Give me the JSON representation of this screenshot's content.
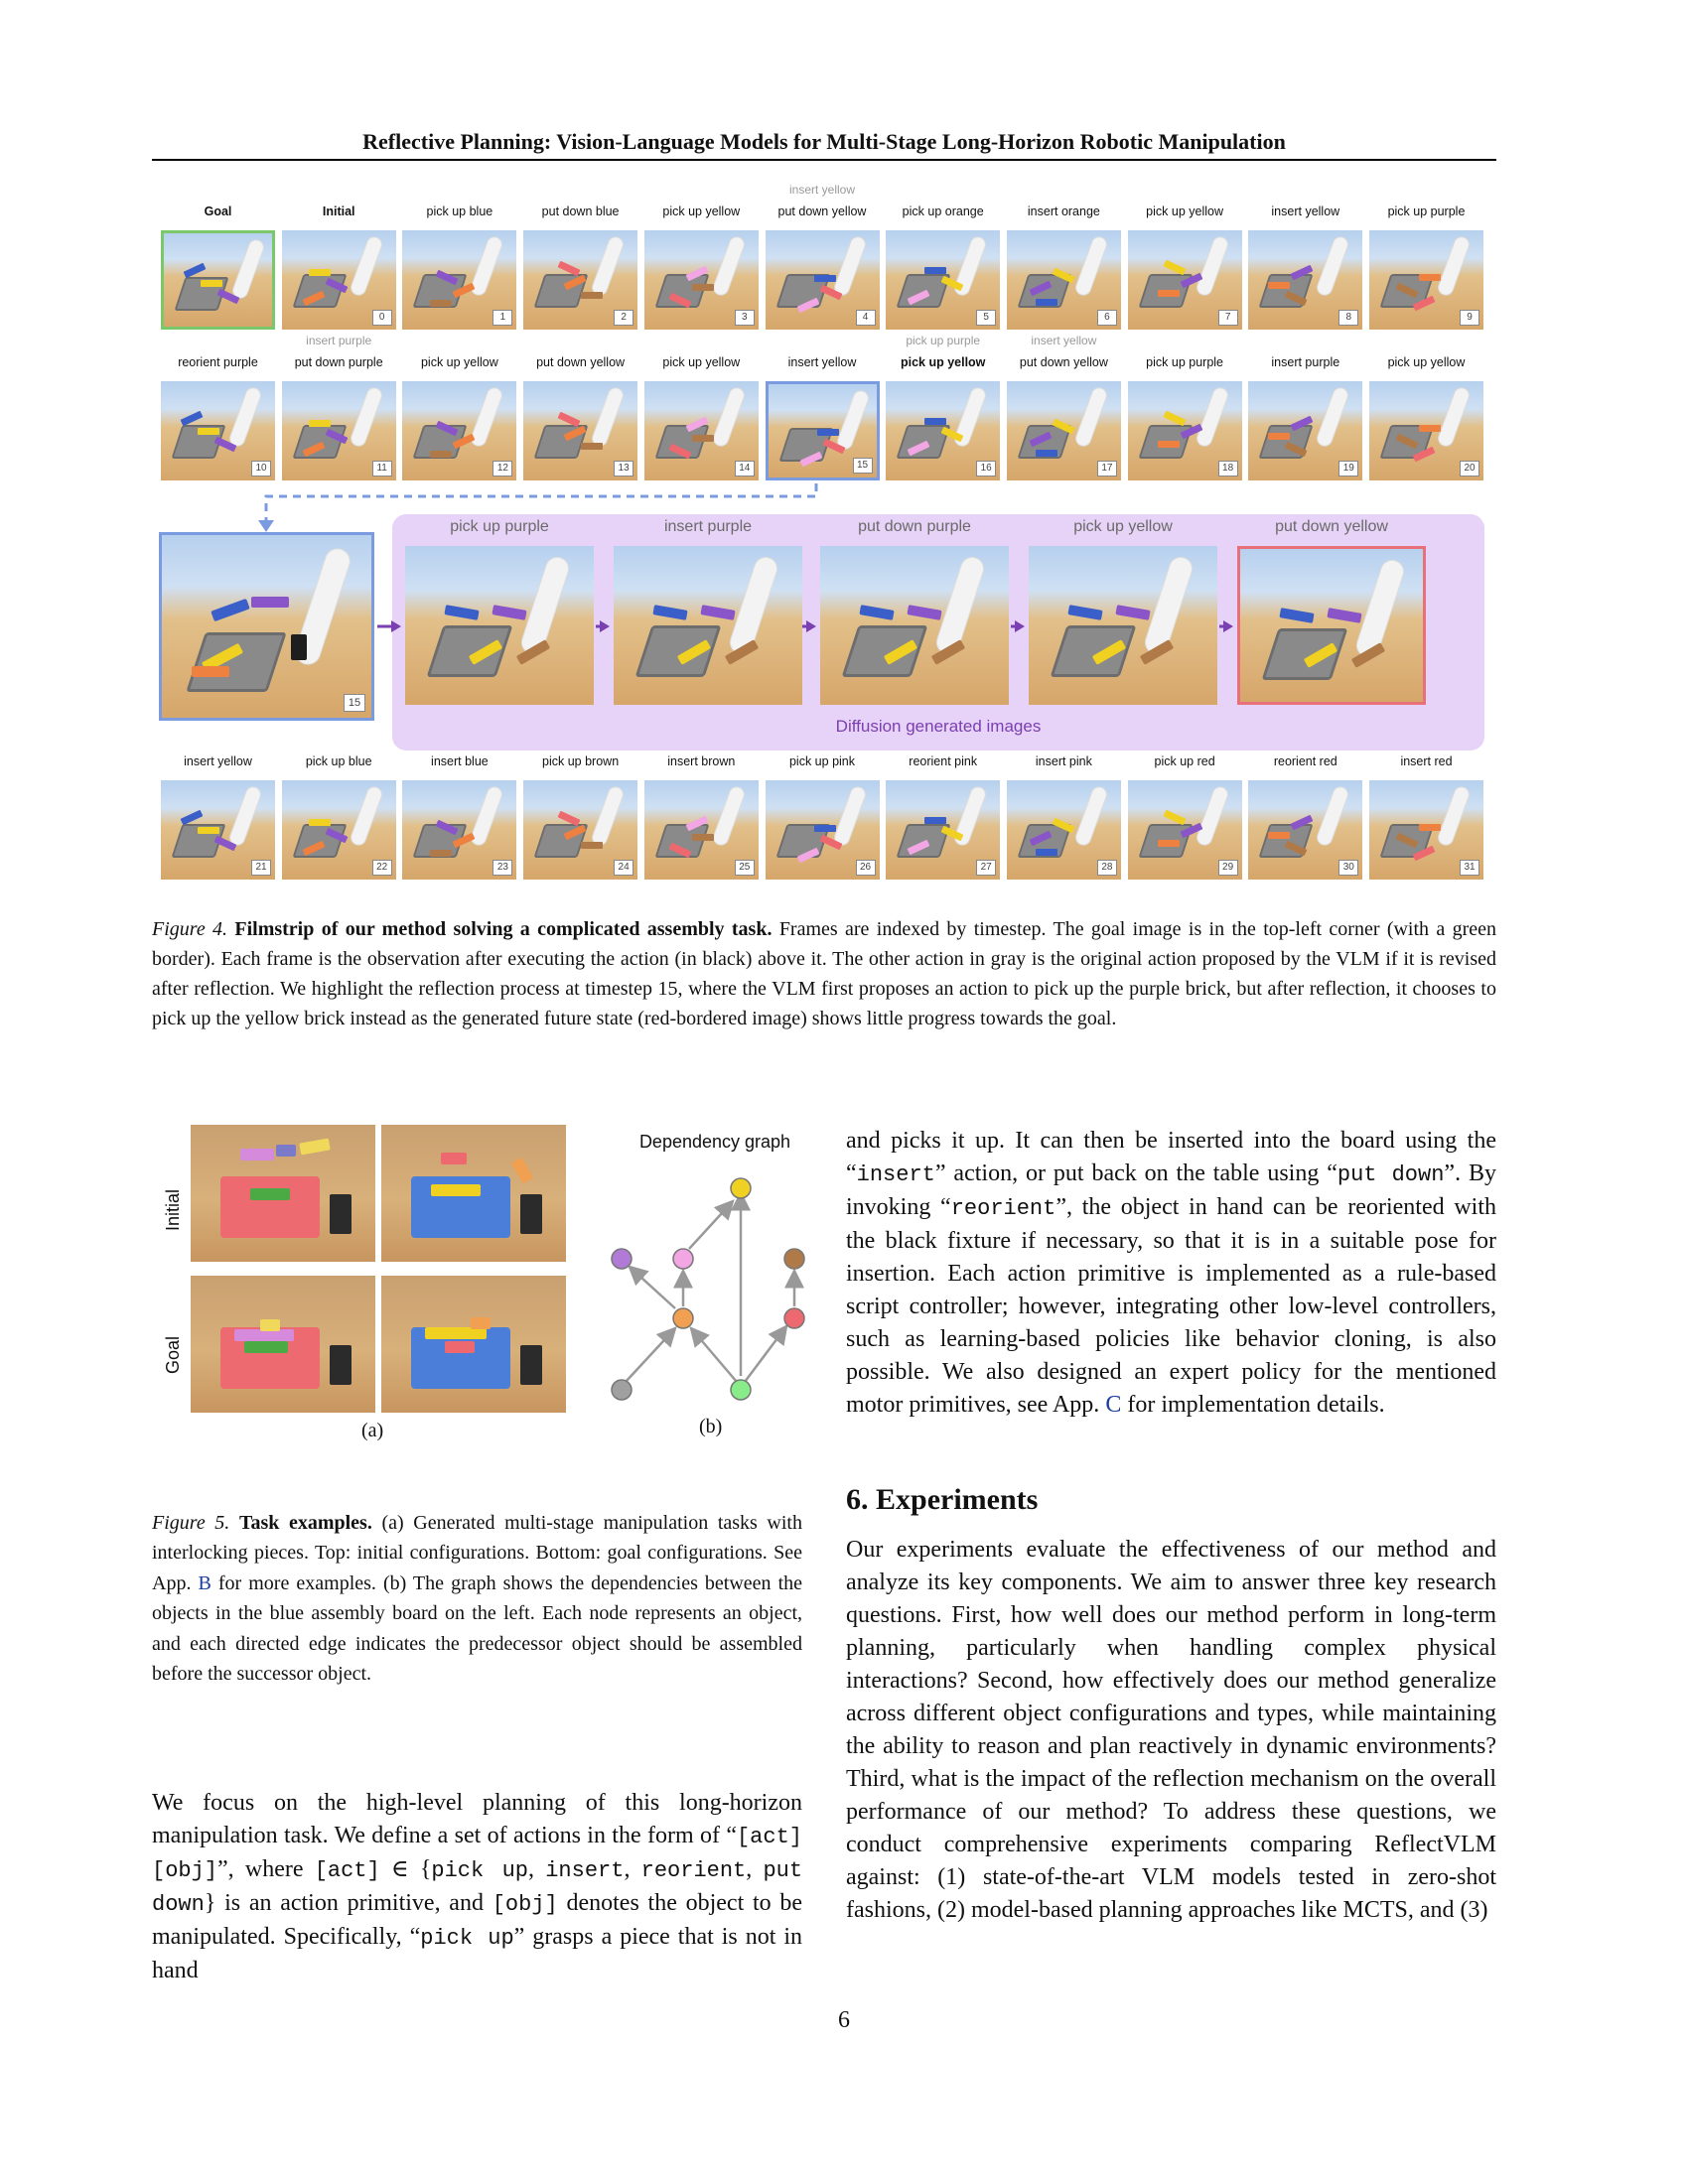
{
  "header": {
    "title": "Reflective Planning: Vision-Language Models for Multi-Stage Long-Horizon Robotic Manipulation"
  },
  "filmstrip": {
    "row1": [
      {
        "label": "Goal",
        "index": "",
        "gray_label": "",
        "bold": true
      },
      {
        "label": "Initial",
        "index": "0",
        "gray_label": "",
        "bold": true
      },
      {
        "label": "pick up blue",
        "index": "1",
        "gray_label": ""
      },
      {
        "label": "put down blue",
        "index": "2",
        "gray_label": ""
      },
      {
        "label": "pick up yellow",
        "index": "3",
        "gray_label": ""
      },
      {
        "label": "put down yellow",
        "index": "4",
        "gray_label": "insert yellow"
      },
      {
        "label": "pick up orange",
        "index": "5",
        "gray_label": ""
      },
      {
        "label": "insert orange",
        "index": "6",
        "gray_label": ""
      },
      {
        "label": "pick up yellow",
        "index": "7",
        "gray_label": ""
      },
      {
        "label": "insert yellow",
        "index": "8",
        "gray_label": ""
      },
      {
        "label": "pick up purple",
        "index": "9",
        "gray_label": ""
      }
    ],
    "row2": [
      {
        "label": "reorient purple",
        "index": "10",
        "gray_label": ""
      },
      {
        "label": "put down purple",
        "index": "11",
        "gray_label": "insert purple"
      },
      {
        "label": "pick up yellow",
        "index": "12",
        "gray_label": ""
      },
      {
        "label": "put down yellow",
        "index": "13",
        "gray_label": ""
      },
      {
        "label": "pick up yellow",
        "index": "14",
        "gray_label": ""
      },
      {
        "label": "insert yellow",
        "index": "15",
        "gray_label": ""
      },
      {
        "label": "pick up yellow",
        "index": "16",
        "gray_label": "pick up purple",
        "bold": true
      },
      {
        "label": "put down yellow",
        "index": "17",
        "gray_label": "insert yellow"
      },
      {
        "label": "pick up purple",
        "index": "18",
        "gray_label": ""
      },
      {
        "label": "insert purple",
        "index": "19",
        "gray_label": ""
      },
      {
        "label": "pick up yellow",
        "index": "20",
        "gray_label": ""
      }
    ],
    "reflection": {
      "start_index": "15",
      "steps": [
        "pick up purple",
        "insert purple",
        "put down purple",
        "pick up yellow",
        "put down yellow"
      ],
      "caption": "Diffusion generated images"
    },
    "row3": [
      {
        "label": "insert yellow",
        "index": "21"
      },
      {
        "label": "pick up blue",
        "index": "22"
      },
      {
        "label": "insert blue",
        "index": "23"
      },
      {
        "label": "pick up brown",
        "index": "24"
      },
      {
        "label": "insert brown",
        "index": "25"
      },
      {
        "label": "pick up pink",
        "index": "26"
      },
      {
        "label": "reorient pink",
        "index": "27"
      },
      {
        "label": "insert pink",
        "index": "28"
      },
      {
        "label": "pick up red",
        "index": "29"
      },
      {
        "label": "reorient red",
        "index": "30"
      },
      {
        "label": "insert red",
        "index": "31"
      }
    ]
  },
  "figure4": {
    "label": "Figure 4.",
    "title": "Filmstrip of our method solving a complicated assembly task.",
    "text": "Frames are indexed by timestep. The goal image is in the top-left corner (with a green border). Each frame is the observation after executing the action (in black) above it. The other action in gray is the original action proposed by the VLM if it is revised after reflection. We highlight the reflection process at timestep 15, where the VLM first proposes an action to pick up the purple brick, but after reflection, it chooses to pick up the yellow brick instead as the generated future state (red-bordered image) shows little progress towards the goal."
  },
  "figure5": {
    "row_labels": [
      "Initial",
      "Goal"
    ],
    "graph_title": "Dependency graph",
    "sub_a": "(a)",
    "sub_b": "(b)",
    "label": "Figure 5.",
    "title": "Task examples.",
    "text_1": "(a) Generated multi-stage manipulation tasks with interlocking pieces. Top: initial configurations. Bottom: goal configurations. See App.",
    "link_1": "B",
    "text_2": "for more examples. (b) The graph shows the dependencies between the objects in the blue assembly board on the left. Each node represents an object, and each directed edge indicates the predecessor object should be assembled before the successor object.",
    "colors": {
      "purple": "#b07ad6",
      "pink": "#f2a6e4",
      "yellow": "#f0d020",
      "orange": "#f0a050",
      "brown": "#b07a48",
      "red": "#ee6870",
      "gray": "#a0a0a0",
      "green": "#88ec88"
    }
  },
  "left_column": {
    "p1": "We focus on the high-level planning of this long-horizon manipulation task. We define a set of actions in the form of “",
    "m1": "[act] [obj]",
    "p2": "”, where",
    "m2": "[act]",
    "p3": "∈ {",
    "m3": "pick up",
    "m4": "insert",
    "m5": "reorient",
    "m6": "put down",
    "p4": "} is an action primitive, and",
    "m7": "[obj]",
    "p5": "denotes the object to be manipulated. Specifically, “",
    "m8": "pick up",
    "p6": "” grasps a piece that is not in hand"
  },
  "right_column": {
    "p1": "and picks it up. It can then be inserted into the board using the “",
    "m1": "insert",
    "p2": "” action, or put back on the table using “",
    "m2": "put down",
    "p3": "”. By invoking “",
    "m3": "reorient",
    "p4": "”, the object in hand can be reoriented with the black fixture if necessary, so that it is in a suitable pose for insertion. Each action primitive is implemented as a rule-based script controller; however, integrating other low-level controllers, such as learning-based policies like behavior cloning, is also possible. We also designed an expert policy for the mentioned motor primitives, see App.",
    "link": "C",
    "p5": "for implementation details.",
    "section": "6. Experiments",
    "body": "Our experiments evaluate the effectiveness of our method and analyze its key components. We aim to answer three key research questions. First, how well does our method perform in long-term planning, particularly when handling complex physical interactions? Second, how effectively does our method generalize across different object configurations and types, while maintaining the ability to reason and plan reactively in dynamic environments? Third, what is the impact of the reflection mechanism on the overall performance of our method? To address these questions, we conduct comprehensive experiments comparing ReflectVLM against: (1) state-of-the-art VLM models tested in zero-shot fashions, (2) model-based planning approaches like MCTS, and (3)"
  },
  "page_number": "6"
}
